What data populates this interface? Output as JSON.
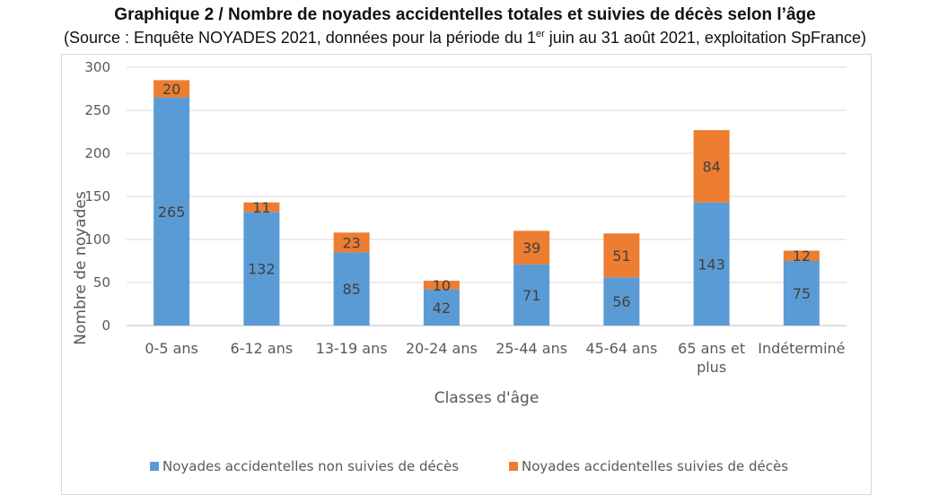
{
  "header": {
    "title": "Graphique 2 / Nombre de noyades accidentelles totales et suivies de décès selon l’âge",
    "source_prefix": "(Source : Enquête NOYADES 2021, données pour la période du 1",
    "source_sup": "er",
    "source_suffix": " juin au 31 août 2021, exploitation SpFrance)"
  },
  "chart_data": {
    "type": "bar",
    "stacked": true,
    "categories": [
      [
        "0-5 ans"
      ],
      [
        "6-12 ans"
      ],
      [
        "13-19 ans"
      ],
      [
        "20-24 ans"
      ],
      [
        "25-44 ans"
      ],
      [
        "45-64 ans"
      ],
      [
        "65 ans et",
        "plus"
      ],
      [
        "Indéterminé"
      ]
    ],
    "series": [
      {
        "name": "Noyades accidentelles non suivies de décès",
        "values": [
          265,
          132,
          85,
          42,
          71,
          56,
          143,
          75
        ],
        "color": "#5b9bd5"
      },
      {
        "name": "Noyades accidentelles suivies de décès",
        "values": [
          20,
          11,
          23,
          10,
          39,
          51,
          84,
          12
        ],
        "color": "#ed7d31"
      }
    ],
    "xlabel": "Classes d'âge",
    "ylabel": "Nombre de noyades",
    "ylim": [
      0,
      300
    ],
    "yticks": [
      0,
      50,
      100,
      150,
      200,
      250,
      300
    ],
    "grid": true,
    "legend_position": "bottom"
  }
}
